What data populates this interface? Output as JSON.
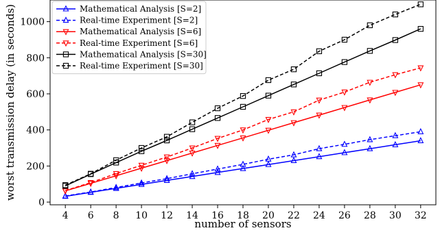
{
  "chart_data": {
    "type": "line",
    "xlabel": "number of sensors",
    "ylabel": "worst transmission delay (in seconds)",
    "x": [
      4,
      6,
      8,
      10,
      12,
      14,
      16,
      18,
      20,
      22,
      24,
      26,
      28,
      30,
      32
    ],
    "xlim": [
      2.8,
      33.2
    ],
    "ylim": [
      -15,
      1120
    ],
    "xticks": [
      4,
      6,
      8,
      10,
      12,
      14,
      16,
      18,
      20,
      22,
      24,
      26,
      28,
      30,
      32
    ],
    "yticks": [
      0,
      200,
      400,
      600,
      800,
      1000
    ],
    "legend_position": "top-left",
    "grid": false,
    "series": [
      {
        "name": "Mathematical Analysis [S=2]",
        "color": "#0000ff",
        "style": "solid",
        "marker": "triangle-up",
        "values": [
          32,
          54,
          76,
          98,
          120,
          142,
          164,
          186,
          208,
          230,
          252,
          274,
          296,
          318,
          340
        ]
      },
      {
        "name": "Real-time Experiment [S=2]",
        "color": "#0000ff",
        "style": "dashed",
        "marker": "triangle-up",
        "values": [
          34,
          56,
          81,
          106,
          130,
          157,
          183,
          209,
          238,
          262,
          296,
          320,
          346,
          368,
          390
        ]
      },
      {
        "name": "Mathematical Analysis [S=6]",
        "color": "#ff0000",
        "style": "solid",
        "marker": "triangle-down",
        "values": [
          62,
          104,
          146,
          188,
          230,
          272,
          314,
          356,
          398,
          440,
          482,
          524,
          566,
          608,
          650
        ]
      },
      {
        "name": "Real-time Experiment [S=6]",
        "color": "#ff0000",
        "style": "dashed",
        "marker": "triangle-down",
        "values": [
          64,
          108,
          158,
          204,
          250,
          300,
          353,
          400,
          458,
          500,
          565,
          610,
          664,
          706,
          744
        ]
      },
      {
        "name": "Mathematical Analysis [S=30]",
        "color": "#000000",
        "style": "solid",
        "marker": "square",
        "values": [
          90,
          155,
          219,
          282,
          342,
          404,
          466,
          528,
          590,
          652,
          714,
          776,
          838,
          898,
          960
        ]
      },
      {
        "name": "Real-time Experiment [S=30]",
        "color": "#000000",
        "style": "dashed",
        "marker": "square",
        "values": [
          94,
          157,
          232,
          300,
          362,
          442,
          520,
          588,
          676,
          736,
          836,
          900,
          980,
          1040,
          1096
        ]
      }
    ]
  }
}
